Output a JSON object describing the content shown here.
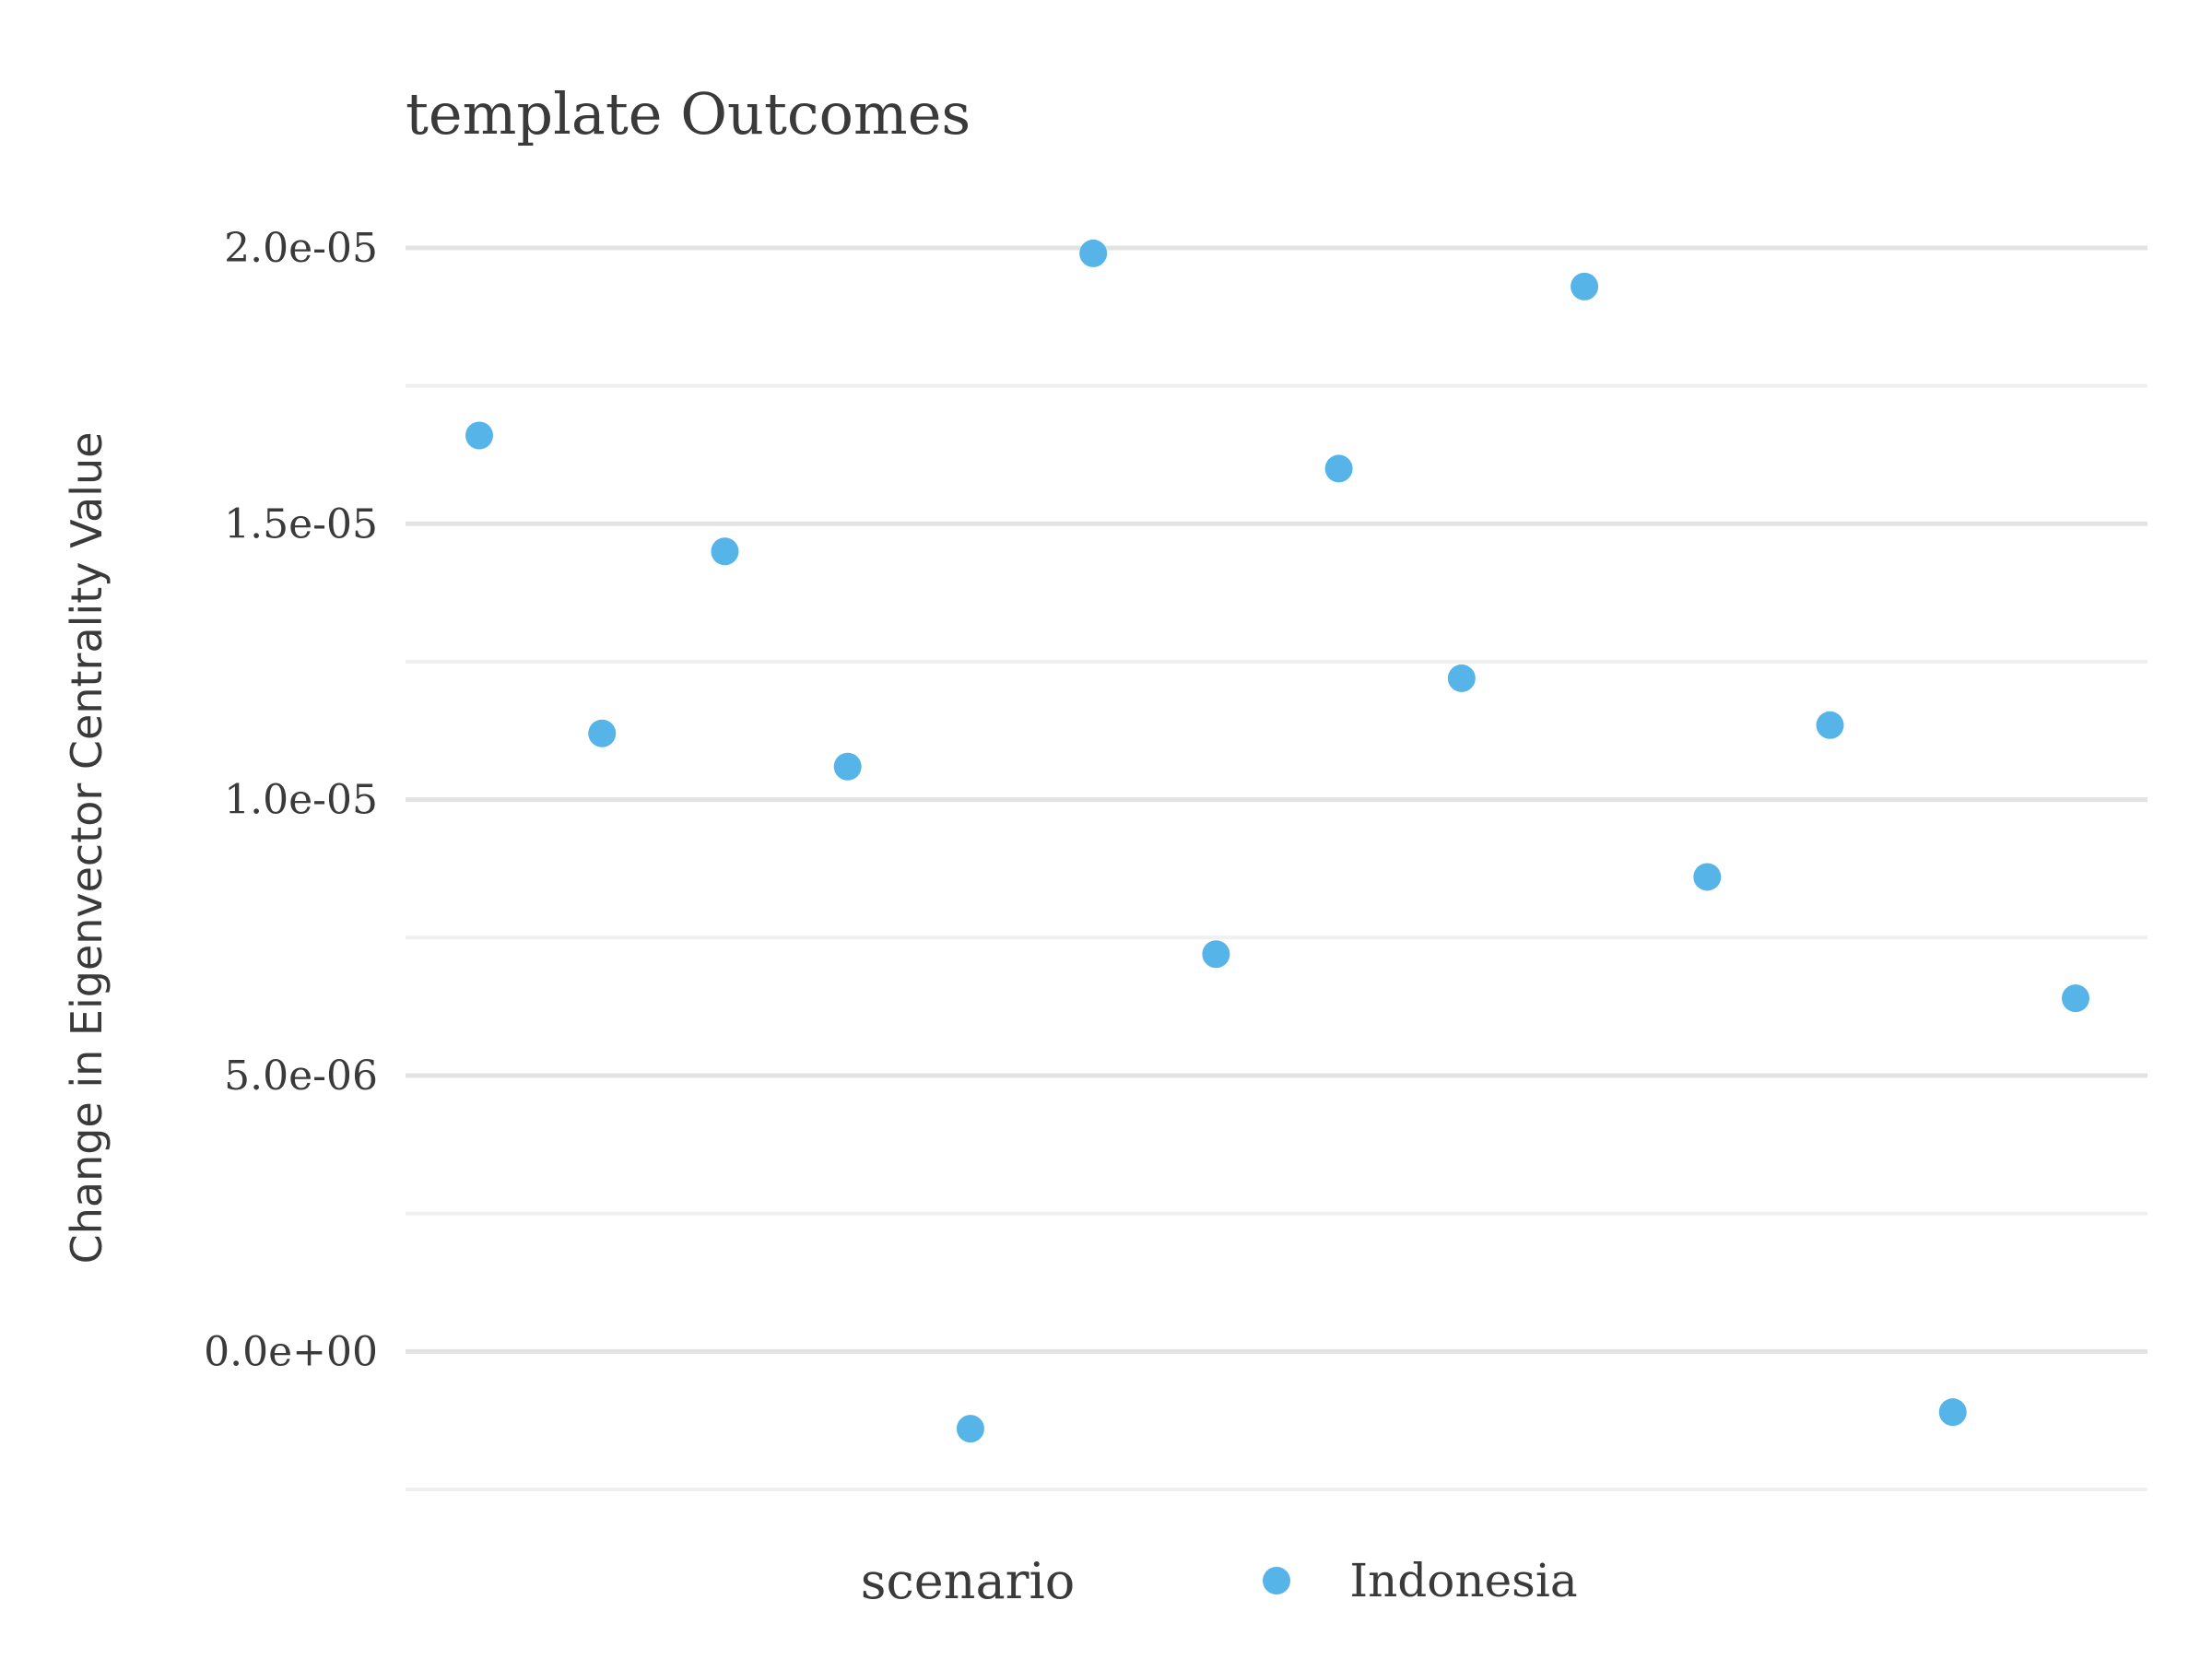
{
  "chart_data": {
    "type": "scatter",
    "title": "template Outcomes",
    "xlabel": "",
    "ylabel": "Change in Eigenvector Centrality Value",
    "ylim": [
      -2.4e-06,
      2.04e-05
    ],
    "y_ticks": [
      0,
      5e-06,
      1e-05,
      1.5e-05,
      2e-05
    ],
    "y_tick_labels": [
      "0.0e+00",
      "5.0e-06",
      "1.0e-05",
      "1.5e-05",
      "2.0e-05"
    ],
    "y_minor_ticks": [
      -2.5e-06,
      2.5e-06,
      7.5e-06,
      1.25e-05,
      1.75e-05
    ],
    "grid": true,
    "legend": {
      "title": "scenario",
      "position": "bottom"
    },
    "series": [
      {
        "name": "Indonesia",
        "color": "#56B4E9",
        "x": [
          1,
          2,
          3,
          4,
          5,
          6,
          7,
          8,
          9,
          10,
          11,
          12,
          13,
          14
        ],
        "y": [
          1.66e-05,
          1.12e-05,
          1.45e-05,
          1.06e-05,
          -1.4e-06,
          1.99e-05,
          7.2e-06,
          1.6e-05,
          1.22e-05,
          1.93e-05,
          8.6e-06,
          1.135e-05,
          -1.1e-06,
          6.4e-06
        ]
      }
    ]
  }
}
